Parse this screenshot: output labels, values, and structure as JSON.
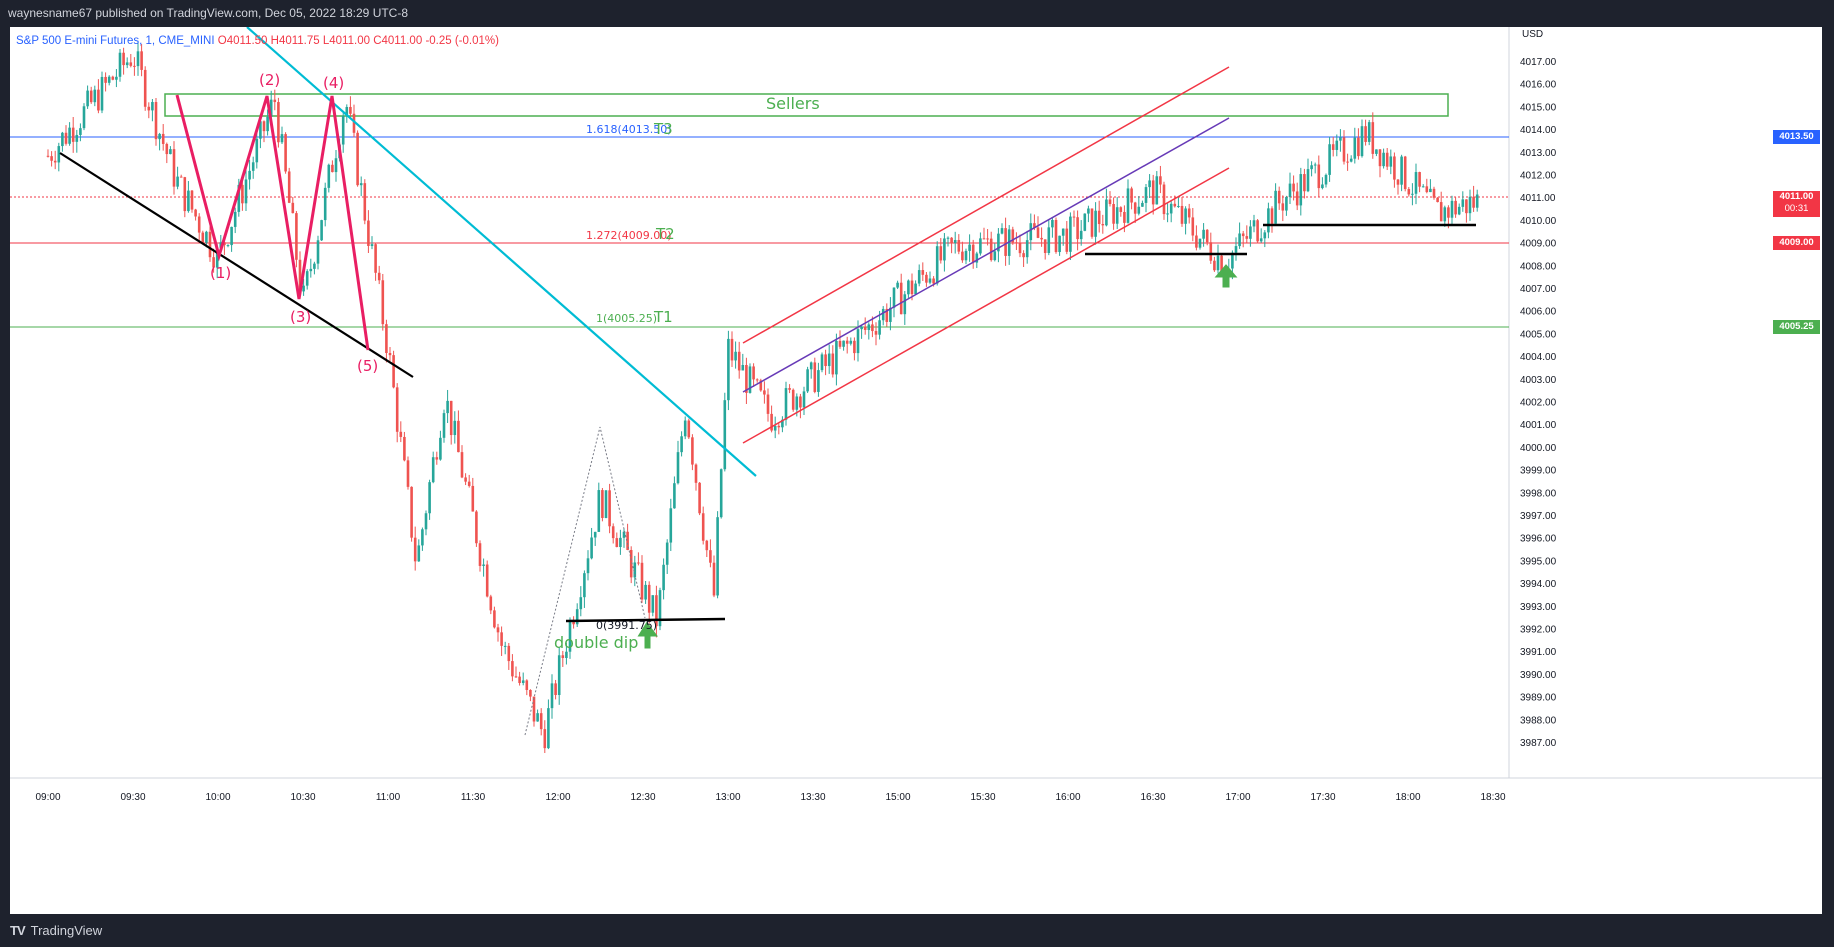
{
  "header": {
    "published_text": "waynesname67 published on TradingView.com, Dec 05, 2022 18:29 UTC-8"
  },
  "legend": {
    "symbol": "S&P 500 E-mini Futures, 1, CME_MINI",
    "open": "O4011.50",
    "high": "H4011.75",
    "low": "L4011.00",
    "close": "C4011.00",
    "change": "-0.25 (-0.01%)"
  },
  "price_axis": {
    "currency": "USD",
    "ticks": [
      "4017.00",
      "4016.00",
      "4015.00",
      "4014.00",
      "4013.00",
      "4012.00",
      "4011.00",
      "4010.00",
      "4009.00",
      "4008.00",
      "4007.00",
      "4006.00",
      "4005.00",
      "4004.00",
      "4003.00",
      "4002.00",
      "4001.00",
      "4000.00",
      "3999.00",
      "3998.00",
      "3997.00",
      "3996.00",
      "3995.00",
      "3994.00",
      "3993.00",
      "3992.00",
      "3991.00",
      "3990.00",
      "3989.00",
      "3988.00",
      "3987.00"
    ],
    "tags": {
      "t3": {
        "text": "4013.50",
        "color": "#2962ff"
      },
      "last": {
        "text": "4011.00",
        "countdown": "00:31",
        "color": "#f23645"
      },
      "t2": {
        "text": "4009.00",
        "color": "#f23645"
      },
      "t1": {
        "text": "4005.25",
        "color": "#4caf50"
      }
    }
  },
  "time_axis": {
    "ticks": [
      "09:00",
      "09:30",
      "10:00",
      "10:30",
      "11:00",
      "11:30",
      "12:00",
      "12:30",
      "13:00",
      "13:30",
      "15:00",
      "15:30",
      "16:00",
      "16:30",
      "17:00",
      "17:30",
      "18:00",
      "18:30"
    ]
  },
  "annotations": {
    "sellers": "Sellers",
    "fib_t3": "1.618(4013.50)",
    "t3": "T3",
    "fib_t2": "1.272(4009.00)",
    "t2": "T2",
    "fib_t1": "1(4005.25)",
    "t1": "T1",
    "fib_0": "0(3991.75)",
    "double_dip": "double dip",
    "wave_labels": [
      "(1)",
      "(2)",
      "(3)",
      "(4)",
      "(5)"
    ]
  },
  "footer": {
    "brand": "TradingView"
  },
  "colors": {
    "up": "#26a69a",
    "down": "#ef5350",
    "wave": "#e91e63",
    "trend": "#00bcd4",
    "sellers_box": "#4caf50"
  },
  "chart_data": {
    "type": "candlestick",
    "symbol": "S&P 500 E-mini Futures",
    "interval": "1",
    "ylim": [
      3986.5,
      4018
    ],
    "approx_path": [
      {
        "t": "09:00",
        "p": 4013.0
      },
      {
        "t": "09:30",
        "p": 4017.5
      },
      {
        "t": "09:45",
        "p": 4012.0
      },
      {
        "t": "10:00",
        "p": 4008.5
      },
      {
        "t": "10:20",
        "p": 4015.5
      },
      {
        "t": "10:30",
        "p": 4006.5
      },
      {
        "t": "10:45",
        "p": 4015.5
      },
      {
        "t": "11:00",
        "p": 4004.5
      },
      {
        "t": "11:10",
        "p": 3995.0
      },
      {
        "t": "11:20",
        "p": 4002.5
      },
      {
        "t": "11:40",
        "p": 3991.5
      },
      {
        "t": "11:55",
        "p": 3987.5
      },
      {
        "t": "12:15",
        "p": 3998.0
      },
      {
        "t": "12:35",
        "p": 3992.5
      },
      {
        "t": "12:45",
        "p": 4002.0
      },
      {
        "t": "12:55",
        "p": 3993.5
      },
      {
        "t": "13:00",
        "p": 4004.5
      },
      {
        "t": "13:15",
        "p": 4001.5
      },
      {
        "t": "14:30",
        "p": 4005.5
      },
      {
        "t": "15:20",
        "p": 4009.0
      },
      {
        "t": "16:00",
        "p": 4009.5
      },
      {
        "t": "16:30",
        "p": 4011.5
      },
      {
        "t": "16:55",
        "p": 4008.3
      },
      {
        "t": "17:15",
        "p": 4011.0
      },
      {
        "t": "17:45",
        "p": 4014.0
      },
      {
        "t": "18:10",
        "p": 4010.5
      },
      {
        "t": "18:25",
        "p": 4011.0
      }
    ]
  }
}
